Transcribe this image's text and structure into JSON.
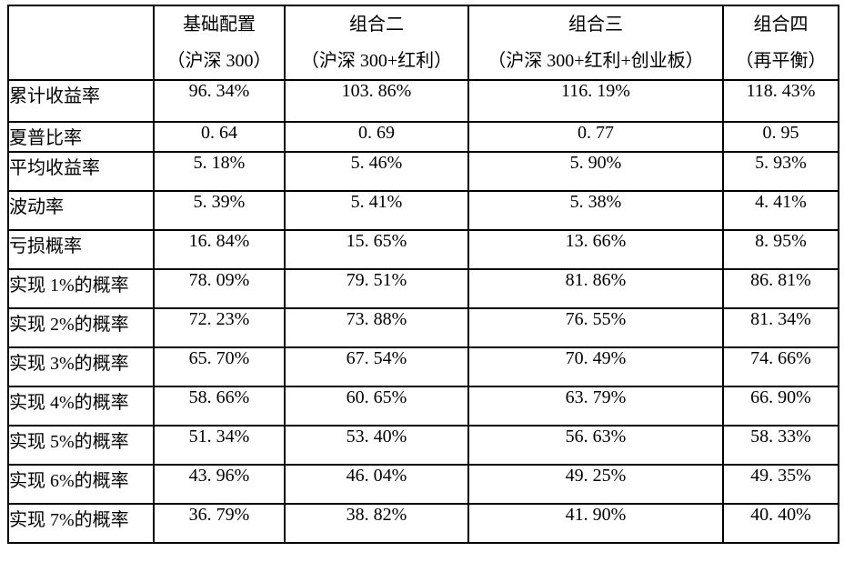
{
  "table": {
    "title": "portfolio-performance-comparison",
    "columns": [
      {
        "line1": "",
        "line2": ""
      },
      {
        "line1": "基础配置",
        "line2": "（沪深 300）"
      },
      {
        "line1": "组合二",
        "line2": "（沪深 300+红利）"
      },
      {
        "line1": "组合三",
        "line2": "（沪深 300+红利+创业板）"
      },
      {
        "line1": "组合四",
        "line2": "（再平衡）"
      }
    ],
    "rows": [
      {
        "label": "累计收益率",
        "values": [
          "96. 34%",
          "103. 86%",
          "116. 19%",
          "118. 43%"
        ]
      },
      {
        "label": "夏普比率",
        "values": [
          "0. 64",
          "0. 69",
          "0. 77",
          "0. 95"
        ]
      },
      {
        "label": "平均收益率",
        "values": [
          "5. 18%",
          "5. 46%",
          "5. 90%",
          "5. 93%"
        ]
      },
      {
        "label": "波动率",
        "values": [
          "5. 39%",
          "5. 41%",
          "5. 38%",
          "4. 41%"
        ]
      },
      {
        "label": "亏损概率",
        "values": [
          "16. 84%",
          "15. 65%",
          "13. 66%",
          "8. 95%"
        ]
      },
      {
        "label": "实现 1%的概率",
        "values": [
          "78. 09%",
          "79. 51%",
          "81. 86%",
          "86. 81%"
        ]
      },
      {
        "label": "实现 2%的概率",
        "values": [
          "72. 23%",
          "73. 88%",
          "76. 55%",
          "81. 34%"
        ]
      },
      {
        "label": "实现 3%的概率",
        "values": [
          "65. 70%",
          "67. 54%",
          "70. 49%",
          "74. 66%"
        ]
      },
      {
        "label": "实现 4%的概率",
        "values": [
          "58. 66%",
          "60. 65%",
          "63. 79%",
          "66. 90%"
        ]
      },
      {
        "label": "实现 5%的概率",
        "values": [
          "51. 34%",
          "53. 40%",
          "56. 63%",
          "58. 33%"
        ]
      },
      {
        "label": "实现 6%的概率",
        "values": [
          "43. 96%",
          "46. 04%",
          "49. 25%",
          "49. 35%"
        ]
      },
      {
        "label": "实现 7%的概率",
        "values": [
          "36. 79%",
          "38. 82%",
          "41. 90%",
          "40. 40%"
        ]
      }
    ]
  }
}
